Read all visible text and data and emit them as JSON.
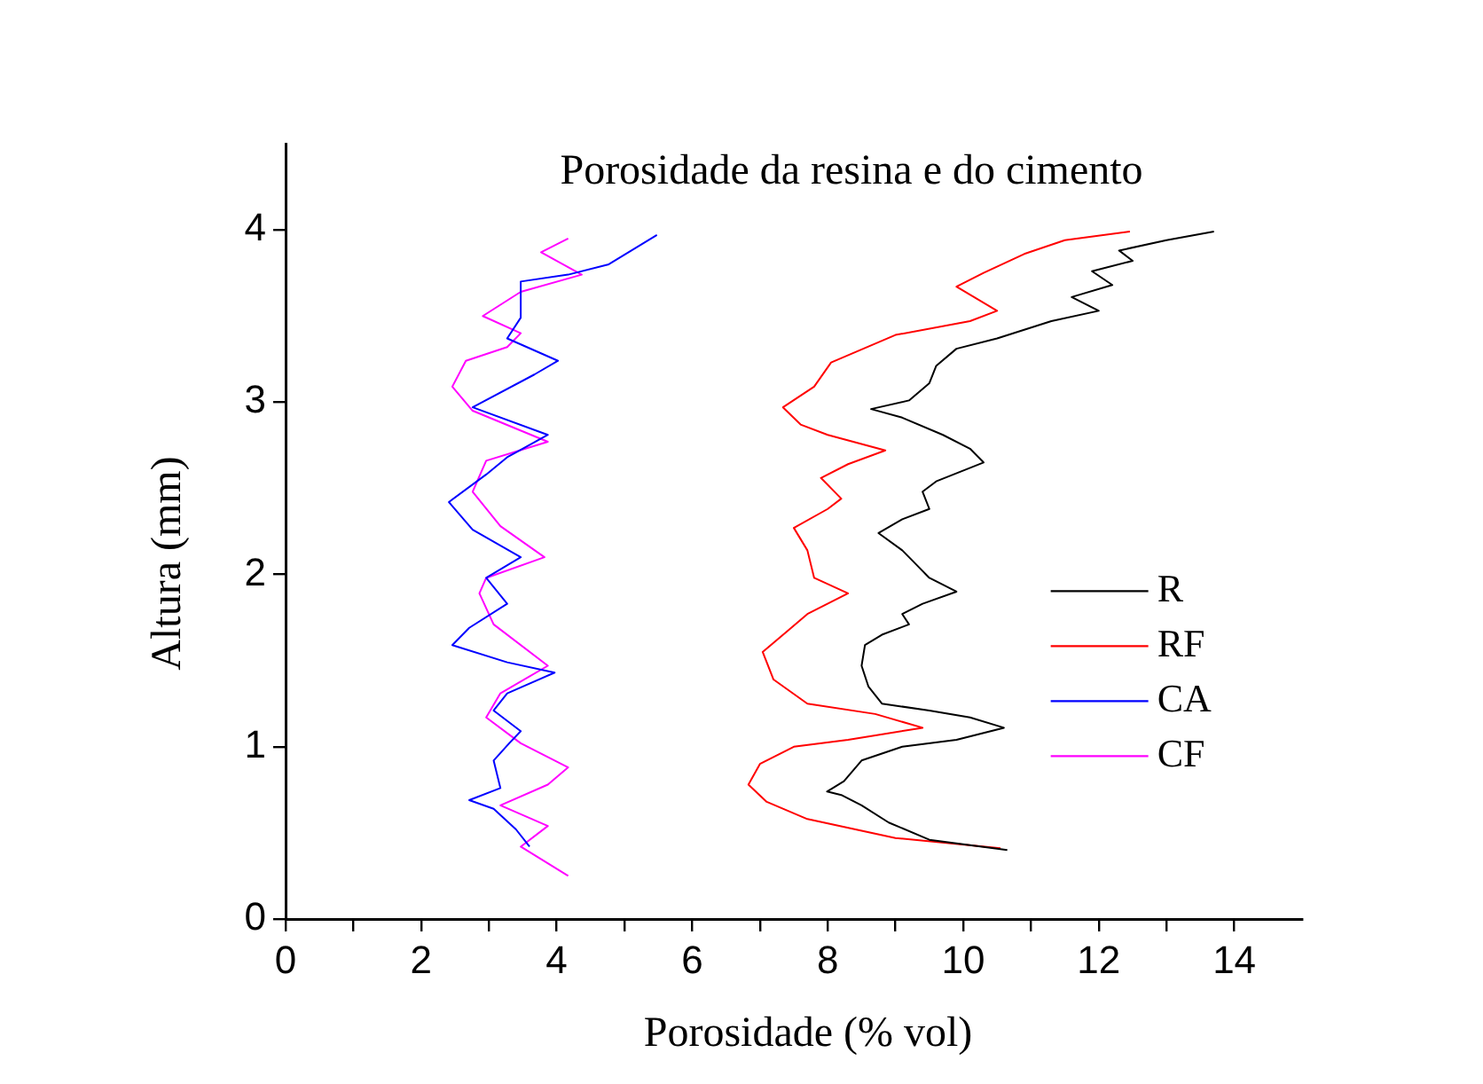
{
  "chart_data": {
    "type": "line",
    "title": "Porosidade da resina e do cimento",
    "xlabel": "Porosidade (% vol)",
    "ylabel": "Altura (mm)",
    "xlim": [
      0,
      15
    ],
    "ylim": [
      0,
      4.5
    ],
    "xticks": [
      0,
      {
        "value": 1,
        "label": null
      },
      2,
      {
        "value": 3,
        "label": null
      },
      4,
      {
        "value": 5,
        "label": null
      },
      6,
      {
        "value": 7,
        "label": null
      },
      8,
      {
        "value": 9,
        "label": null
      },
      10,
      {
        "value": 11,
        "label": null
      },
      12,
      {
        "value": 13,
        "label": null
      },
      14
    ],
    "yticks": [
      0,
      1,
      2,
      3,
      4
    ],
    "grid": false,
    "legend": "right",
    "marker": "none",
    "line_style": "solid",
    "series": [
      {
        "name": "R",
        "color": "#000000",
        "x": [
          10.65,
          9.5,
          8.9,
          8.5,
          8.2,
          7.99,
          8.24,
          8.5,
          9.1,
          9.9,
          10.6,
          10.1,
          9.5,
          8.8,
          8.6,
          8.5,
          8.55,
          8.8,
          9.2,
          9.1,
          9.4,
          9.9,
          9.5,
          9.3,
          9.1,
          8.75,
          9.1,
          9.5,
          9.4,
          9.6,
          10.3,
          10.1,
          9.7,
          9.1,
          8.64,
          9.2,
          9.5,
          9.6,
          9.9,
          10.5,
          11.3,
          12.0,
          11.6,
          12.2,
          11.9,
          12.5,
          12.3,
          13.0,
          13.7
        ],
        "values": [
          0.4,
          0.46,
          0.56,
          0.66,
          0.72,
          0.74,
          0.8,
          0.92,
          1.0,
          1.04,
          1.11,
          1.17,
          1.21,
          1.25,
          1.35,
          1.47,
          1.59,
          1.65,
          1.71,
          1.77,
          1.83,
          1.9,
          1.98,
          2.06,
          2.14,
          2.24,
          2.32,
          2.38,
          2.48,
          2.54,
          2.65,
          2.73,
          2.81,
          2.91,
          2.96,
          3.01,
          3.11,
          3.21,
          3.31,
          3.37,
          3.47,
          3.53,
          3.61,
          3.68,
          3.76,
          3.82,
          3.88,
          3.94,
          3.99
        ]
      },
      {
        "name": "RF",
        "color": "#ff0000",
        "x": [
          10.55,
          9.0,
          7.7,
          7.1,
          6.83,
          7.0,
          7.5,
          8.3,
          9.4,
          8.7,
          7.7,
          7.2,
          7.04,
          7.4,
          7.7,
          8.3,
          7.8,
          7.7,
          7.5,
          8.0,
          8.2,
          7.9,
          8.3,
          8.85,
          8.0,
          7.6,
          7.34,
          7.8,
          8.05,
          9.0,
          10.1,
          10.5,
          9.9,
          10.3,
          10.9,
          11.5,
          12.46
        ],
        "values": [
          0.41,
          0.47,
          0.58,
          0.68,
          0.78,
          0.9,
          1.0,
          1.04,
          1.11,
          1.19,
          1.25,
          1.39,
          1.55,
          1.67,
          1.77,
          1.89,
          1.98,
          2.14,
          2.27,
          2.38,
          2.44,
          2.56,
          2.64,
          2.72,
          2.81,
          2.87,
          2.97,
          3.09,
          3.23,
          3.39,
          3.47,
          3.53,
          3.67,
          3.75,
          3.86,
          3.94,
          3.99
        ]
      },
      {
        "name": "CA",
        "color": "#0000ff",
        "x": [
          3.6,
          3.4,
          3.07,
          2.71,
          3.17,
          3.07,
          3.3,
          3.47,
          3.07,
          3.27,
          3.97,
          3.27,
          2.46,
          2.71,
          3.27,
          2.96,
          3.47,
          2.76,
          2.41,
          2.96,
          3.27,
          3.87,
          2.76,
          3.67,
          4.02,
          3.27,
          3.47,
          3.47,
          4.17,
          4.77,
          5.48
        ],
        "values": [
          0.42,
          0.52,
          0.64,
          0.69,
          0.76,
          0.92,
          1.02,
          1.09,
          1.21,
          1.31,
          1.43,
          1.49,
          1.59,
          1.69,
          1.83,
          1.98,
          2.1,
          2.26,
          2.42,
          2.58,
          2.68,
          2.81,
          2.97,
          3.16,
          3.24,
          3.37,
          3.49,
          3.7,
          3.74,
          3.8,
          3.97
        ]
      },
      {
        "name": "CF",
        "color": "#ff00ff",
        "x": [
          4.17,
          3.47,
          3.87,
          3.17,
          3.87,
          4.17,
          3.47,
          2.96,
          3.17,
          3.87,
          3.07,
          2.86,
          2.96,
          3.82,
          3.17,
          2.76,
          2.96,
          3.87,
          2.76,
          2.46,
          2.66,
          3.27,
          3.47,
          2.91,
          3.47,
          4.37,
          3.77,
          4.17
        ],
        "values": [
          0.25,
          0.42,
          0.54,
          0.66,
          0.78,
          0.88,
          1.02,
          1.17,
          1.31,
          1.47,
          1.71,
          1.89,
          1.98,
          2.1,
          2.28,
          2.48,
          2.66,
          2.77,
          2.95,
          3.09,
          3.24,
          3.32,
          3.4,
          3.5,
          3.64,
          3.74,
          3.87,
          3.95
        ]
      }
    ]
  }
}
